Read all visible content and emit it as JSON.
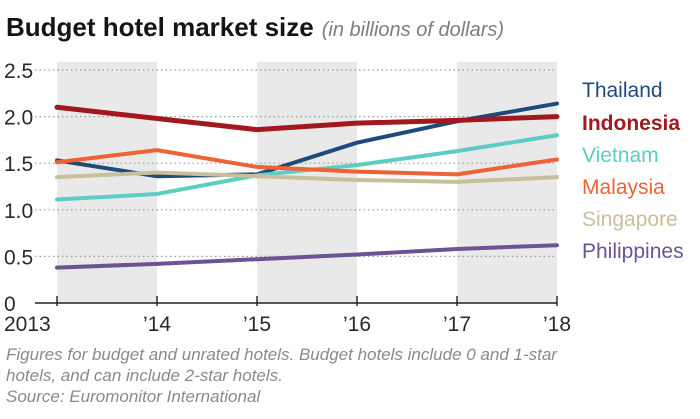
{
  "chart_data": {
    "type": "line",
    "title": "Budget hotel market size",
    "subtitle": "(in billions of dollars)",
    "x": [
      2013,
      2014,
      2015,
      2016,
      2017,
      2018
    ],
    "x_tick_labels": [
      "2013",
      "’14",
      "’15",
      "’16",
      "’17",
      "’18"
    ],
    "y_ticks": [
      0,
      0.5,
      1.0,
      1.5,
      2.0,
      2.5
    ],
    "y_tick_labels": [
      "0",
      "0.5",
      "1.0",
      "1.5",
      "2.0",
      "2.5"
    ],
    "ylim": [
      0,
      2.5
    ],
    "grid": "dotted horizontal",
    "legend_placement": "right",
    "series": [
      {
        "name": "Thailand",
        "color": "#1f4a7c",
        "bold": false,
        "values": [
          1.53,
          1.36,
          1.38,
          1.72,
          1.95,
          2.14
        ]
      },
      {
        "name": "Indonesia",
        "color": "#a3181f",
        "bold": true,
        "values": [
          2.1,
          1.98,
          1.86,
          1.93,
          1.96,
          2.0
        ]
      },
      {
        "name": "Vietnam",
        "color": "#5ccdc2",
        "bold": false,
        "values": [
          1.11,
          1.17,
          1.37,
          1.48,
          1.63,
          1.8
        ]
      },
      {
        "name": "Malaysia",
        "color": "#ef6234",
        "bold": false,
        "values": [
          1.51,
          1.64,
          1.46,
          1.41,
          1.38,
          1.54
        ]
      },
      {
        "name": "Singapore",
        "color": "#c8bf9c",
        "bold": false,
        "values": [
          1.35,
          1.4,
          1.36,
          1.32,
          1.3,
          1.35
        ]
      },
      {
        "name": "Philippines",
        "color": "#6a5494",
        "bold": false,
        "values": [
          0.38,
          0.42,
          0.47,
          0.52,
          0.58,
          0.62
        ]
      }
    ]
  },
  "footnote": {
    "line1": "Figures for budget and unrated hotels. Budget hotels include 0 and 1-star",
    "line2": "hotels, and can include 2-star hotels.",
    "source": "Source: Euromonitor International"
  }
}
